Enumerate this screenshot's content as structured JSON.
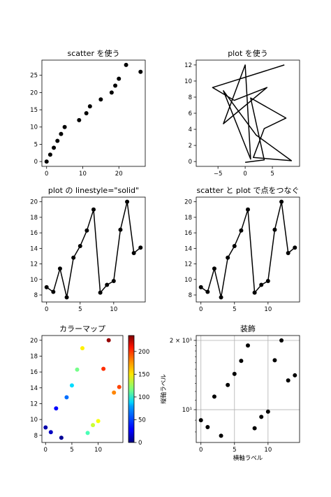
{
  "chart_data": [
    {
      "id": "p1",
      "type": "scatter",
      "title": "scatter を使う",
      "xlim": [
        -1.3,
        27.3
      ],
      "ylim": [
        -1.4,
        29.4
      ],
      "xticks": [
        0,
        10,
        20
      ],
      "yticks": [
        0,
        5,
        10,
        15,
        20,
        25
      ],
      "series": [
        {
          "x": [
            0,
            1,
            2,
            3,
            4,
            5,
            9,
            11,
            12,
            15,
            18,
            19,
            20,
            22,
            26
          ],
          "y": [
            0,
            2,
            4,
            6,
            8,
            10,
            12,
            14,
            16,
            18,
            20,
            22,
            24,
            28,
            26
          ],
          "color": "#000000"
        }
      ]
    },
    {
      "id": "p2",
      "type": "line",
      "title": "plot を使う",
      "xlim": [
        -9,
        10
      ],
      "ylim": [
        -0.6,
        12.6
      ],
      "xticks": [
        -5,
        0,
        5
      ],
      "yticks": [
        0,
        2,
        4,
        6,
        8,
        10,
        12
      ],
      "series": [
        {
          "x": [
            7.2,
            -6,
            -2,
            4,
            -4,
            0,
            1,
            -4,
            2,
            8.5,
            1.5,
            3.5,
            7.5,
            1,
            3.5,
            0
          ],
          "y": [
            12.0,
            9.2,
            7.6,
            9.2,
            4.7,
            12.0,
            0.3,
            8.8,
            3.3,
            0.1,
            0.5,
            4.1,
            5.4,
            7.9,
            0.2,
            -0.1
          ],
          "color": "#000000"
        }
      ]
    },
    {
      "id": "p3",
      "type": "line",
      "title": "plot の linestyle=\"solid\"",
      "xlim": [
        -0.7,
        14.7
      ],
      "ylim": [
        7.1,
        20.6
      ],
      "xticks": [
        0,
        5,
        10
      ],
      "yticks": [
        8,
        10,
        12,
        14,
        16,
        18,
        20
      ],
      "series": [
        {
          "x": [
            0,
            1,
            2,
            3,
            4,
            5,
            6,
            7,
            8,
            9,
            10,
            11,
            12,
            13,
            14
          ],
          "y": [
            9.0,
            8.4,
            11.4,
            7.7,
            12.8,
            14.3,
            16.3,
            19.0,
            8.3,
            9.3,
            9.8,
            16.4,
            20.0,
            13.4,
            14.1
          ],
          "color": "#000000",
          "markers": true
        }
      ]
    },
    {
      "id": "p4",
      "type": "line",
      "title": "scatter と plot で点をつなぐ",
      "xlim": [
        -0.7,
        14.7
      ],
      "ylim": [
        7.1,
        20.6
      ],
      "xticks": [
        0,
        5,
        10
      ],
      "yticks": [
        8,
        10,
        12,
        14,
        16,
        18,
        20
      ],
      "series": [
        {
          "x": [
            0,
            1,
            2,
            3,
            4,
            5,
            6,
            7,
            8,
            9,
            10,
            11,
            12,
            13,
            14
          ],
          "y": [
            9.0,
            8.4,
            11.4,
            7.7,
            12.8,
            14.3,
            16.3,
            19.0,
            8.3,
            9.3,
            9.8,
            16.4,
            20.0,
            13.4,
            14.1
          ],
          "color": "#000000",
          "markers": true
        }
      ]
    },
    {
      "id": "p5",
      "type": "scatter",
      "title": "カラーマップ",
      "colormap": "jet",
      "xlim": [
        -0.7,
        14.7
      ],
      "ylim": [
        7.1,
        20.6
      ],
      "xticks": [
        0,
        5,
        10
      ],
      "yticks": [
        8,
        10,
        12,
        14,
        16,
        18,
        20
      ],
      "series": [
        {
          "x": [
            0,
            1,
            2,
            3,
            4,
            5,
            6,
            7,
            8,
            9,
            10,
            11,
            12,
            13,
            14
          ],
          "y": [
            9.0,
            8.4,
            11.4,
            7.7,
            12.8,
            14.3,
            16.3,
            19.0,
            8.3,
            9.3,
            9.8,
            16.4,
            20.0,
            13.4,
            14.1
          ],
          "c": [
            10,
            15,
            30,
            5,
            55,
            80,
            115,
            150,
            105,
            135,
            145,
            195,
            230,
            175,
            190
          ]
        }
      ],
      "colorbar": {
        "min": 0,
        "max": 235,
        "ticks": [
          0,
          50,
          100,
          150,
          200
        ]
      }
    },
    {
      "id": "p6",
      "type": "scatter",
      "title": "装飾",
      "xlabel": "横軸ラベル",
      "ylabel": "縦軸ラベル",
      "yscale": "log",
      "grid": true,
      "xlim": [
        -0.7,
        14.7
      ],
      "ylim": [
        7.2,
        21.0
      ],
      "xticks": [
        0,
        5,
        10
      ],
      "yticks": [
        {
          "value": 10,
          "label": "10¹"
        },
        {
          "value": 20,
          "label": "2 × 10¹"
        }
      ],
      "series": [
        {
          "x": [
            0,
            1,
            2,
            3,
            4,
            5,
            6,
            7,
            8,
            9,
            10,
            11,
            12,
            13,
            14
          ],
          "y": [
            9.0,
            8.4,
            11.4,
            7.7,
            12.8,
            14.3,
            16.3,
            19.0,
            8.3,
            9.3,
            9.8,
            16.4,
            20.0,
            13.4,
            14.1
          ],
          "color": "#000000"
        }
      ]
    }
  ]
}
